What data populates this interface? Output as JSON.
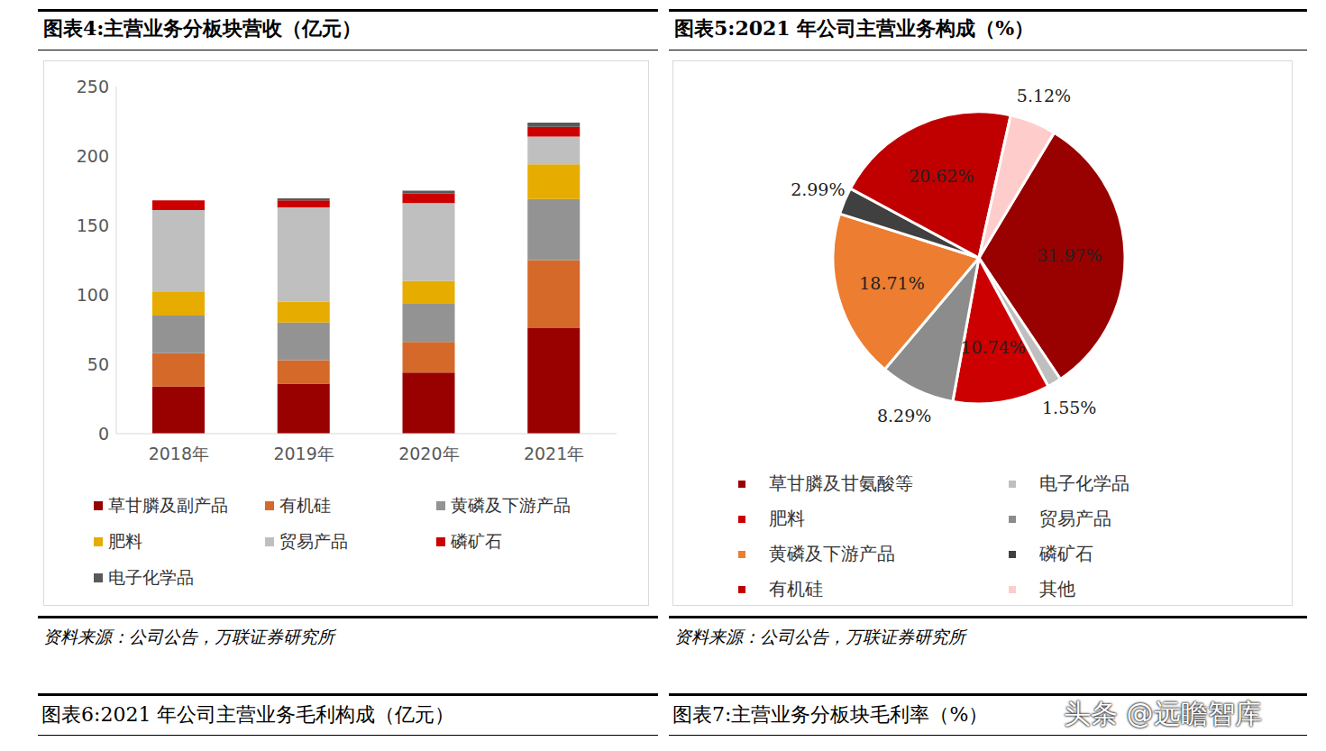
{
  "chart_data": [
    {
      "type": "bar",
      "title": "图表4:主营业务分板块营收（亿元）",
      "source": "资料来源：公司公告，万联证券研究所",
      "stacked": true,
      "grid": false,
      "legend": "bottom",
      "categories": [
        "2018年",
        "2019年",
        "2020年",
        "2021年"
      ],
      "series": [
        {
          "name": "草甘膦及副产品",
          "color": "#990000",
          "values": [
            34,
            36,
            44,
            76
          ]
        },
        {
          "name": "有机硅",
          "color": "#d4692a",
          "values": [
            24,
            17,
            22,
            49
          ]
        },
        {
          "name": "黄磷及下游产品",
          "color": "#939393",
          "values": [
            27,
            27,
            28,
            44
          ]
        },
        {
          "name": "肥料",
          "color": "#e6ac00",
          "values": [
            17,
            15,
            16,
            25
          ]
        },
        {
          "name": "贸易产品",
          "color": "#bfbfbf",
          "values": [
            59,
            68,
            56,
            20
          ]
        },
        {
          "name": "磷矿石",
          "color": "#cc0000",
          "values": [
            7,
            5,
            7,
            7
          ]
        },
        {
          "name": "电子化学品",
          "color": "#595959",
          "values": [
            0,
            1.5,
            2,
            3
          ]
        }
      ],
      "ylim": [
        0,
        250
      ],
      "yticks": [
        0,
        50,
        100,
        150,
        200,
        250
      ]
    },
    {
      "type": "pie",
      "title": "图表5:2021 年公司主营业务构成（%）",
      "source": "资料来源：公司公告，万联证券研究所",
      "legend": "bottom",
      "data_labels": true,
      "categories": [
        "草甘膦及甘氨酸等",
        "电子化学品",
        "肥料",
        "贸易产品",
        "黄磷及下游产品",
        "磷矿石",
        "有机硅",
        "其他"
      ],
      "values": [
        31.97,
        1.55,
        10.74,
        8.29,
        18.71,
        2.99,
        20.62,
        5.12
      ],
      "value_labels": [
        "31.97%",
        "1.55%",
        "10.74%",
        "8.29%",
        "18.71%",
        "2.99%",
        "20.62%",
        "5.12%"
      ],
      "colors": [
        "#990000",
        "#bfbfbf",
        "#cc0000",
        "#8c8c8c",
        "#ed7d31",
        "#404040",
        "#c00000",
        "#ffcccc"
      ]
    }
  ],
  "captions": [
    "图表6:2021 年公司主营业务毛利构成（亿元）",
    "图表7:主营业务分板块毛利率（%）"
  ],
  "watermark": "头条 @远瞻智库"
}
